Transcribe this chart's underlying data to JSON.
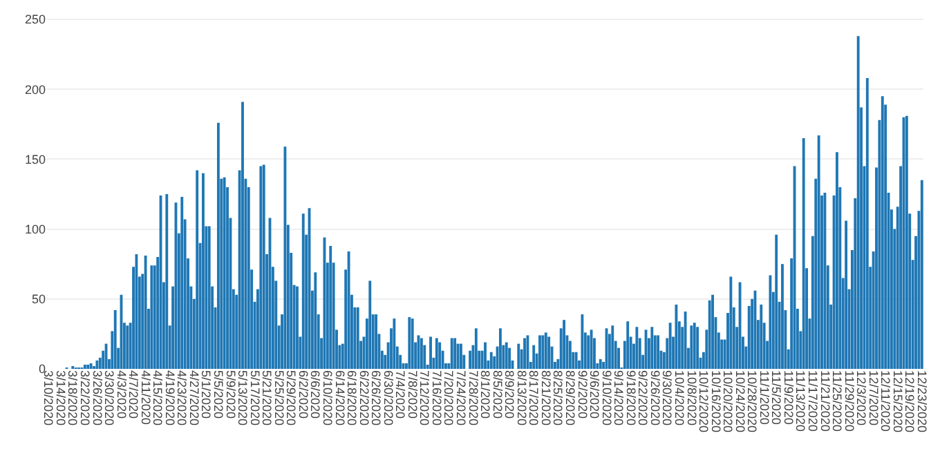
{
  "chart_data": {
    "type": "bar",
    "color": "#1f77b4",
    "categories": [
      "3/10/2020",
      null,
      null,
      null,
      "3/14/2020",
      null,
      null,
      null,
      "3/18/2020",
      null,
      null,
      null,
      "3/22/2020",
      null,
      null,
      null,
      "3/26/2020",
      null,
      null,
      null,
      "3/30/2020",
      null,
      null,
      null,
      "4/3/2020",
      null,
      null,
      null,
      "4/7/2020",
      null,
      null,
      null,
      "4/11/2020",
      null,
      null,
      null,
      "4/15/2020",
      null,
      null,
      null,
      "4/19/2020",
      null,
      null,
      null,
      "4/23/2020",
      null,
      null,
      null,
      "4/27/2020",
      null,
      null,
      null,
      "5/1/2020",
      null,
      null,
      null,
      "5/5/2020",
      null,
      null,
      null,
      "5/9/2020",
      null,
      null,
      null,
      "5/13/2020",
      null,
      null,
      null,
      "5/17/2020",
      null,
      null,
      null,
      "5/21/2020",
      null,
      null,
      null,
      "5/25/2020",
      null,
      null,
      null,
      "5/29/2020",
      null,
      null,
      null,
      "6/2/2020",
      null,
      null,
      null,
      "6/6/2020",
      null,
      null,
      null,
      "6/10/2020",
      null,
      null,
      null,
      "6/14/2020",
      null,
      null,
      null,
      "6/18/2020",
      null,
      null,
      null,
      "6/22/2020",
      null,
      null,
      null,
      "6/26/2020",
      null,
      null,
      null,
      "6/30/2020",
      null,
      null,
      null,
      "7/4/2020",
      null,
      null,
      null,
      "7/8/2020",
      null,
      null,
      null,
      "7/12/2020",
      null,
      null,
      null,
      "7/16/2020",
      null,
      null,
      null,
      "7/20/2020",
      null,
      null,
      null,
      "7/24/2020",
      null,
      null,
      null,
      "7/28/2020",
      null,
      null,
      null,
      "8/1/2020",
      null,
      null,
      null,
      "8/5/2020",
      null,
      null,
      null,
      "8/9/2020",
      null,
      null,
      null,
      "8/13/2020",
      null,
      null,
      null,
      "8/17/2020",
      null,
      null,
      null,
      "8/21/2020",
      null,
      null,
      null,
      "8/25/2020",
      null,
      null,
      null,
      "8/29/2020",
      null,
      null,
      null,
      "9/2/2020",
      null,
      null,
      null,
      "9/6/2020",
      null,
      null,
      null,
      "9/10/2020",
      null,
      null,
      null,
      "9/14/2020",
      null,
      null,
      null,
      "9/18/2020",
      null,
      null,
      null,
      "9/22/2020",
      null,
      null,
      null,
      "9/26/2020",
      null,
      null,
      null,
      "9/30/2020",
      null,
      null,
      null,
      "10/4/2020",
      null,
      null,
      null,
      "10/8/2020",
      null,
      null,
      null,
      "10/12/2020",
      null,
      null,
      null,
      "10/16/2020",
      null,
      null,
      null,
      "10/20/2020",
      null,
      null,
      null,
      "10/24/2020",
      null,
      null,
      null,
      "10/28/2020",
      null,
      null,
      null,
      "11/1/2020",
      null,
      null,
      null,
      "11/5/2020",
      null,
      null,
      null,
      "11/9/2020",
      null,
      null,
      null,
      "11/13/2020",
      null,
      null,
      null,
      "11/17/2020",
      null,
      null,
      null,
      "11/21/2020",
      null,
      null,
      null,
      "11/25/2020",
      null,
      null,
      null,
      "11/29/2020",
      null,
      null,
      null,
      "12/3/2020",
      null,
      null,
      null,
      "12/7/2020",
      null,
      null,
      null,
      "12/11/2020",
      null,
      null,
      null,
      "12/15/2020",
      null,
      null,
      null,
      "12/19/2020",
      null,
      null,
      null,
      "12/23/2020"
    ],
    "values": [
      0,
      0,
      0,
      0,
      0,
      0,
      1,
      0,
      2,
      1,
      1,
      1,
      3,
      3,
      4,
      2,
      6,
      8,
      13,
      18,
      7,
      27,
      42,
      15,
      53,
      33,
      31,
      33,
      73,
      82,
      66,
      68,
      81,
      43,
      74,
      74,
      80,
      124,
      62,
      125,
      31,
      59,
      119,
      97,
      123,
      107,
      79,
      59,
      50,
      142,
      90,
      140,
      102,
      102,
      59,
      44,
      176,
      136,
      137,
      130,
      108,
      57,
      53,
      142,
      191,
      136,
      130,
      71,
      48,
      57,
      145,
      146,
      82,
      108,
      73,
      63,
      31,
      39,
      159,
      103,
      83,
      60,
      59,
      23,
      111,
      96,
      115,
      56,
      69,
      39,
      22,
      94,
      76,
      88,
      76,
      28,
      17,
      18,
      71,
      84,
      53,
      44,
      44,
      20,
      23,
      36,
      63,
      39,
      39,
      25,
      13,
      10,
      19,
      29,
      36,
      16,
      10,
      4,
      4,
      37,
      36,
      19,
      24,
      22,
      17,
      3,
      23,
      8,
      22,
      19,
      13,
      4,
      4,
      22,
      22,
      18,
      18,
      10,
      0,
      13,
      17,
      29,
      13,
      13,
      19,
      6,
      12,
      9,
      16,
      29,
      17,
      19,
      15,
      6,
      0,
      18,
      14,
      22,
      24,
      5,
      17,
      11,
      24,
      24,
      26,
      23,
      16,
      5,
      7,
      29,
      35,
      24,
      20,
      12,
      12,
      6,
      39,
      26,
      24,
      28,
      22,
      4,
      7,
      5,
      29,
      25,
      31,
      20,
      15,
      1,
      20,
      34,
      23,
      18,
      30,
      22,
      10,
      28,
      22,
      30,
      24,
      24,
      13,
      12,
      22,
      33,
      23,
      46,
      34,
      30,
      41,
      15,
      31,
      33,
      30,
      8,
      12,
      28,
      49,
      53,
      37,
      26,
      21,
      21,
      40,
      66,
      44,
      30,
      62,
      23,
      16,
      45,
      50,
      56,
      35,
      46,
      33,
      20,
      67,
      55,
      96,
      48,
      75,
      42,
      14,
      79,
      145,
      43,
      27,
      165,
      72,
      36,
      95,
      136,
      167,
      124,
      126,
      74,
      46,
      124,
      155,
      130,
      65,
      106,
      57,
      85,
      122,
      238,
      187,
      145,
      208,
      73,
      84,
      144,
      178,
      195,
      189,
      126,
      114,
      100,
      116,
      145,
      180,
      181,
      111,
      78,
      95,
      113,
      135
    ],
    "ylim": [
      0,
      252
    ],
    "yticks": [
      0,
      50,
      100,
      150,
      200,
      250
    ],
    "grid": "y"
  }
}
